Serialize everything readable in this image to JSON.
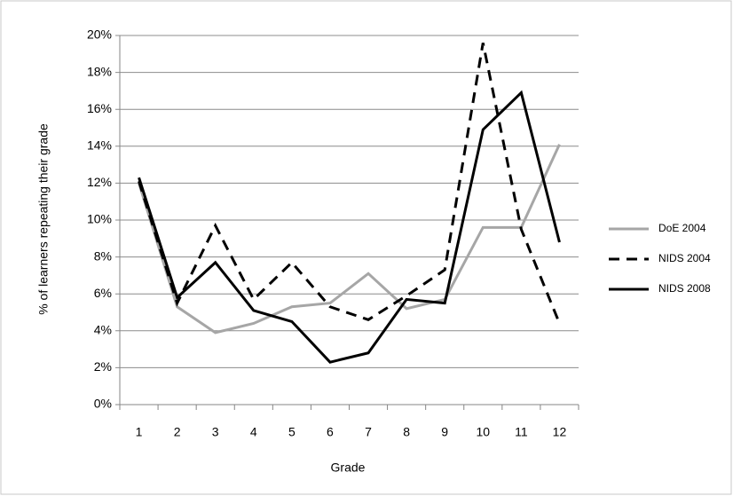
{
  "chart_data": {
    "type": "line",
    "y_label": "% of learners repeating their grade",
    "x_label": "Grade",
    "categories": [
      "1",
      "2",
      "3",
      "4",
      "5",
      "6",
      "7",
      "8",
      "9",
      "10",
      "11",
      "12"
    ],
    "series": [
      {
        "name": "DoE 2004",
        "color": "#a6a6a6",
        "style": "solid",
        "values": [
          12.0,
          5.3,
          3.9,
          4.4,
          5.3,
          5.5,
          7.1,
          5.2,
          5.7,
          9.6,
          9.6,
          14.1
        ]
      },
      {
        "name": "NIDS 2004",
        "color": "#000000",
        "style": "dashed",
        "values": [
          12.1,
          5.5,
          9.7,
          5.7,
          7.7,
          5.3,
          4.6,
          5.9,
          7.3,
          19.6,
          9.5,
          4.4
        ]
      },
      {
        "name": "NIDS 2008",
        "color": "#000000",
        "style": "solid",
        "values": [
          12.3,
          5.8,
          7.7,
          5.1,
          4.5,
          2.3,
          2.8,
          5.7,
          5.5,
          14.9,
          16.9,
          8.8
        ]
      }
    ],
    "ylim": [
      0,
      20
    ],
    "yticks": [
      {
        "value": 0,
        "label": "0%"
      },
      {
        "value": 2,
        "label": "2%"
      },
      {
        "value": 4,
        "label": "4%"
      },
      {
        "value": 6,
        "label": "6%"
      },
      {
        "value": 8,
        "label": "8%"
      },
      {
        "value": 10,
        "label": "10%"
      },
      {
        "value": 12,
        "label": "12%"
      },
      {
        "value": 14,
        "label": "14%"
      },
      {
        "value": 16,
        "label": "16%"
      },
      {
        "value": 18,
        "label": "18%"
      },
      {
        "value": 20,
        "label": "20%"
      }
    ],
    "grid": true,
    "legend": "right"
  }
}
